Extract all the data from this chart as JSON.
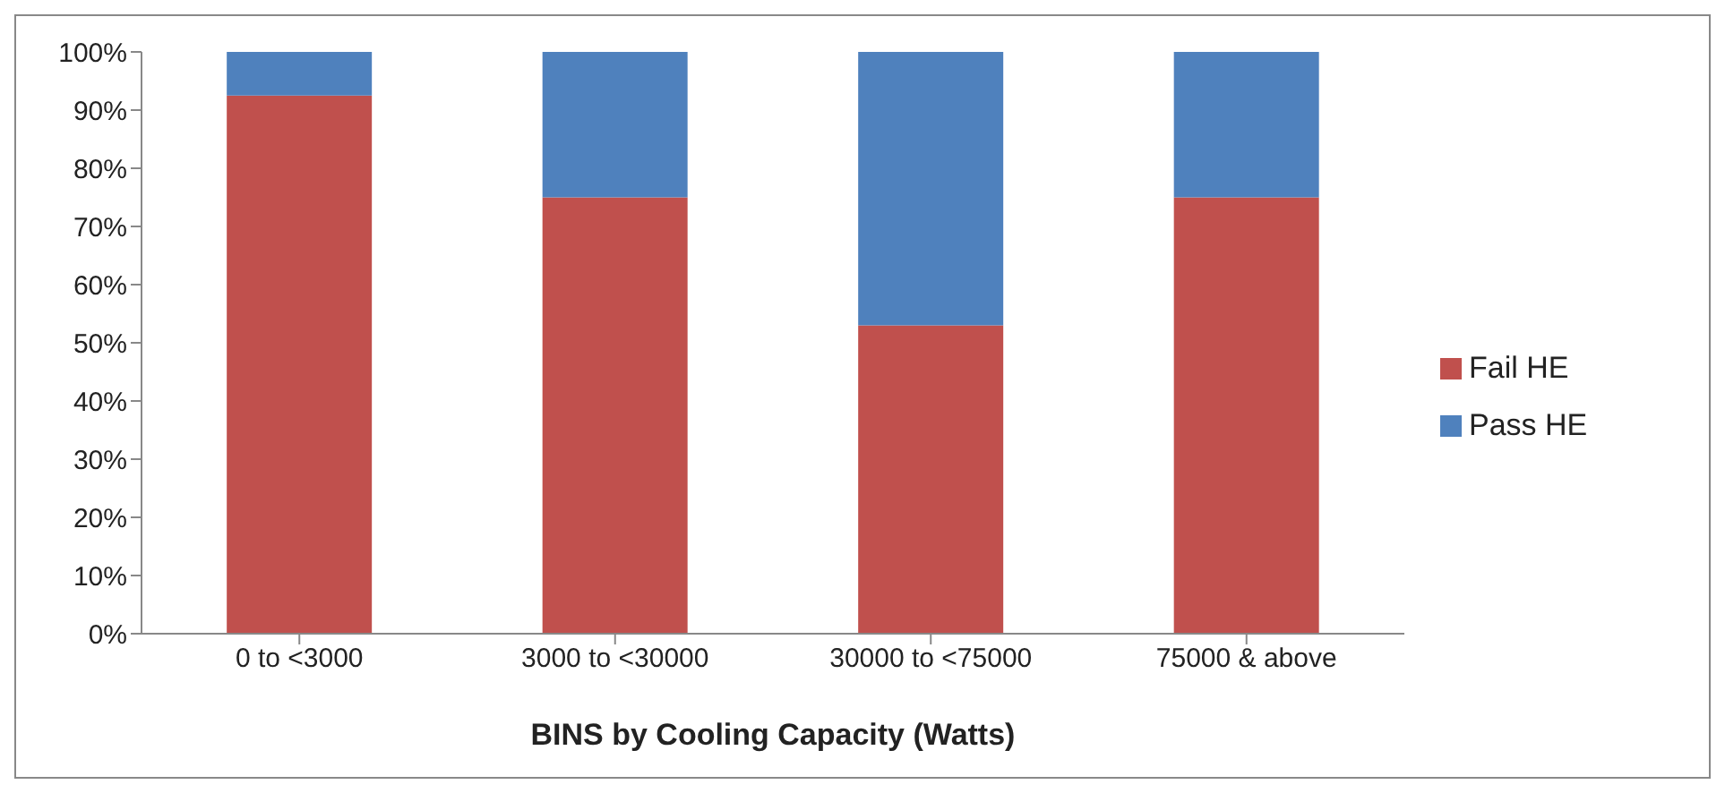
{
  "chart_data": {
    "type": "bar",
    "stacked": true,
    "xlabel": "BINS by Cooling Capacity (Watts)",
    "categories": [
      "0 to <3000",
      "3000 to <30000",
      "30000 to <75000",
      "75000 & above"
    ],
    "series": [
      {
        "name": "Fail HE",
        "color": "#c0504d",
        "values": [
          92.5,
          75,
          53,
          75
        ]
      },
      {
        "name": "Pass HE",
        "color": "#4f81bd",
        "values": [
          7.5,
          25,
          47,
          25
        ]
      }
    ],
    "ylim": [
      0,
      100
    ],
    "yticks": [
      {
        "value": 0,
        "label": "0%"
      },
      {
        "value": 10,
        "label": "10%"
      },
      {
        "value": 20,
        "label": "20%"
      },
      {
        "value": 30,
        "label": "30%"
      },
      {
        "value": 40,
        "label": "40%"
      },
      {
        "value": 50,
        "label": "50%"
      },
      {
        "value": 60,
        "label": "60%"
      },
      {
        "value": 70,
        "label": "70%"
      },
      {
        "value": 80,
        "label": "80%"
      },
      {
        "value": 90,
        "label": "90%"
      },
      {
        "value": 100,
        "label": "100%"
      }
    ],
    "legend": "right"
  }
}
